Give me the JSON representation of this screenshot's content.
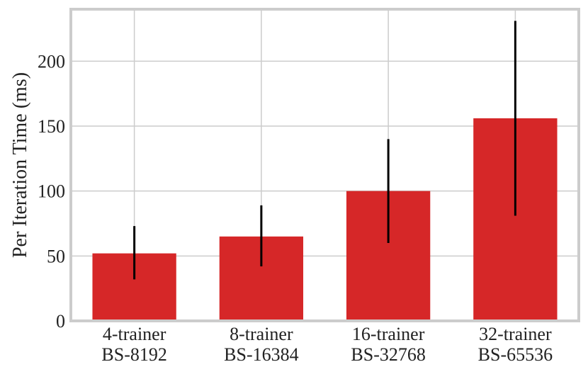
{
  "chart_data": {
    "type": "bar",
    "title": "",
    "xlabel": "",
    "ylabel": "Per Iteration Time (ms)",
    "categories": [
      [
        "4-trainer",
        "BS-8192"
      ],
      [
        "8-trainer",
        "BS-16384"
      ],
      [
        "16-trainer",
        "BS-32768"
      ],
      [
        "32-trainer",
        "BS-65536"
      ]
    ],
    "values": [
      52,
      65,
      100,
      156
    ],
    "error_low": [
      32,
      42,
      60,
      81
    ],
    "error_high": [
      73,
      89,
      140,
      231
    ],
    "ylim": [
      0,
      240
    ],
    "yticks": [
      0,
      50,
      100,
      150,
      200
    ],
    "grid": true,
    "colors": {
      "bar": "#d62728",
      "errorbar": "#000000",
      "grid": "#cccccc",
      "frame": "#cccccc"
    }
  }
}
